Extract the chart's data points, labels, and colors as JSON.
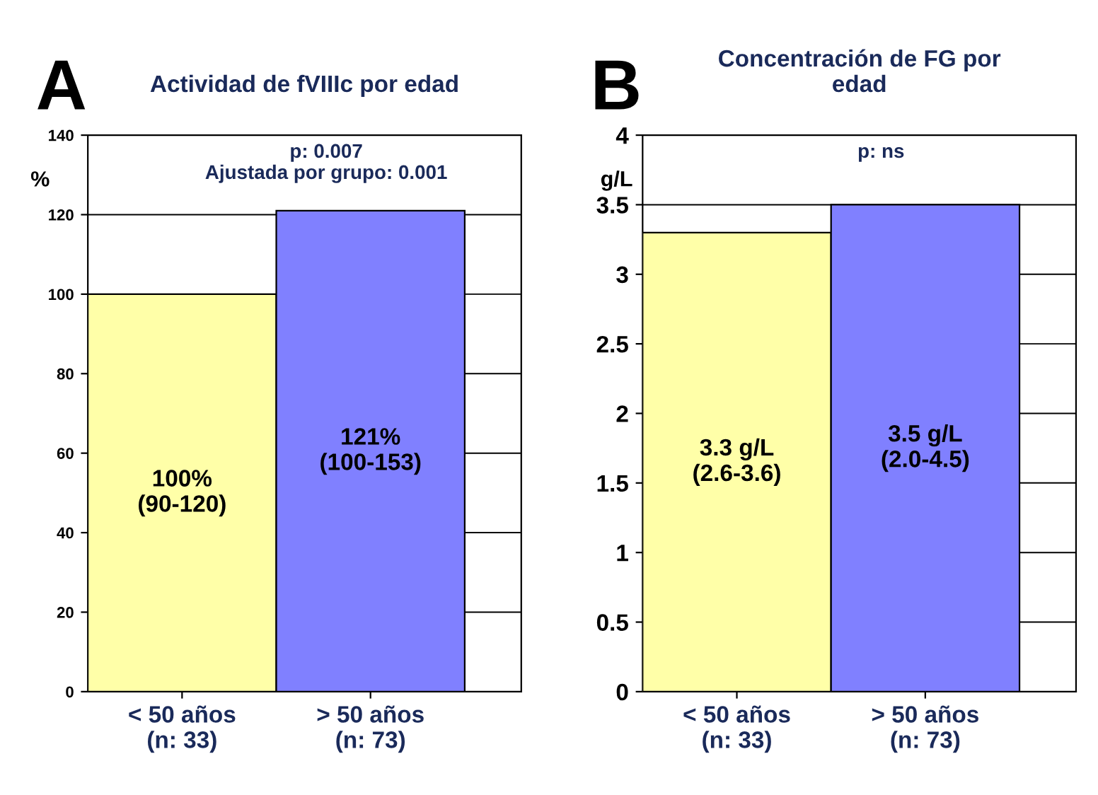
{
  "chart_data": [
    {
      "type": "bar",
      "title": "Actividad de fVIIIc por edad",
      "ylabel": "%",
      "categories": [
        "< 50 años\n(n: 33)",
        "> 50 años\n(n: 73)"
      ],
      "values": [
        100,
        121
      ],
      "colors": [
        "#ffffa8",
        "#8080ff"
      ],
      "value_labels": [
        "100%\n(90-120)",
        "121%\n(100-153)"
      ],
      "ylim": [
        0,
        140
      ],
      "yticks": [
        0,
        20,
        40,
        60,
        80,
        100,
        120,
        140
      ],
      "grid": "y",
      "annotations": [
        "A",
        "p: 0.007\nAjustada por grupo: 0.001"
      ]
    },
    {
      "type": "bar",
      "title": "Concentración de FG por\nedad",
      "ylabel": "g/L",
      "categories": [
        "< 50 años\n(n: 33)",
        "> 50 años\n(n: 73)"
      ],
      "values": [
        3.3,
        3.5
      ],
      "colors": [
        "#ffffa8",
        "#8080ff"
      ],
      "value_labels": [
        "3.3 g/L\n(2.6-3.6)",
        "3.5 g/L\n(2.0-4.5)"
      ],
      "ylim": [
        0,
        4
      ],
      "yticks": [
        0,
        0.5,
        1,
        1.5,
        2,
        2.5,
        3,
        3.5,
        4
      ],
      "grid": "y",
      "annotations": [
        "B",
        "p: ns"
      ]
    }
  ]
}
